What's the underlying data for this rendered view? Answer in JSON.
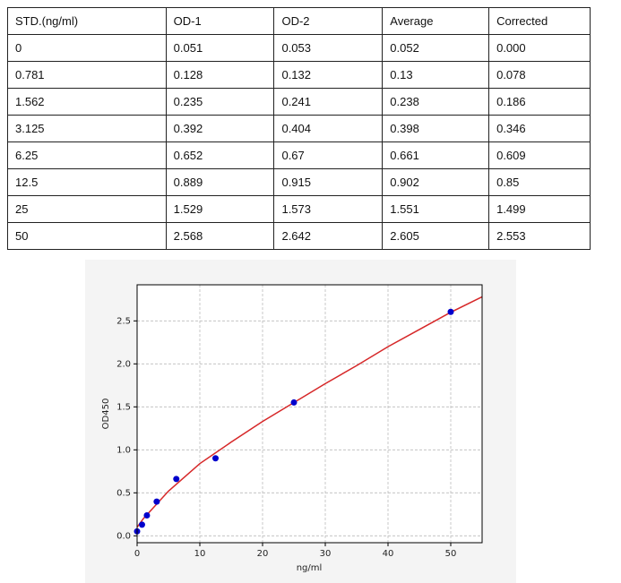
{
  "table": {
    "header": [
      "STD.(ng/ml)",
      "OD-1",
      "OD-2",
      "Average",
      "Corrected"
    ],
    "rows": [
      [
        "0",
        "0.051",
        "0.053",
        "0.052",
        "0.000"
      ],
      [
        "0.781",
        "0.128",
        "0.132",
        "0.13",
        "0.078"
      ],
      [
        "1.562",
        "0.235",
        "0.241",
        "0.238",
        "0.186"
      ],
      [
        "3.125",
        "0.392",
        "0.404",
        "0.398",
        "0.346"
      ],
      [
        "6.25",
        "0.652",
        "0.67",
        "0.661",
        "0.609"
      ],
      [
        "12.5",
        "0.889",
        "0.915",
        "0.902",
        "0.85"
      ],
      [
        "25",
        "1.529",
        "1.573",
        "1.551",
        "1.499"
      ],
      [
        "50",
        "2.568",
        "2.642",
        "2.605",
        "2.553"
      ]
    ]
  },
  "chart_data": {
    "type": "scatter",
    "x_label": "ng/ml",
    "y_label": "OD450",
    "x": [
      0,
      0.781,
      1.562,
      3.125,
      6.25,
      12.5,
      25,
      50
    ],
    "values": [
      0.052,
      0.13,
      0.238,
      0.398,
      0.661,
      0.902,
      1.551,
      2.605
    ],
    "color": "#0000cc",
    "fit": {
      "type": "line",
      "color": "#d62728",
      "x": [
        0,
        1,
        2.5,
        5,
        10,
        15,
        20,
        25,
        30,
        35,
        40,
        45,
        50,
        55
      ],
      "values": [
        0.1,
        0.2,
        0.32,
        0.52,
        0.84,
        1.09,
        1.33,
        1.55,
        1.77,
        1.98,
        2.2,
        2.4,
        2.6,
        2.78
      ]
    },
    "xlim": [
      0,
      55
    ],
    "ylim": [
      -0.08,
      2.92
    ],
    "xticks": [
      0,
      10,
      20,
      30,
      40,
      50
    ],
    "yticks": [
      {
        "value": 0,
        "label": "0.0"
      },
      0.5,
      {
        "value": 1,
        "label": "1.0"
      },
      1.5,
      {
        "value": 2,
        "label": "2.0"
      },
      2.5
    ],
    "grid": true
  }
}
